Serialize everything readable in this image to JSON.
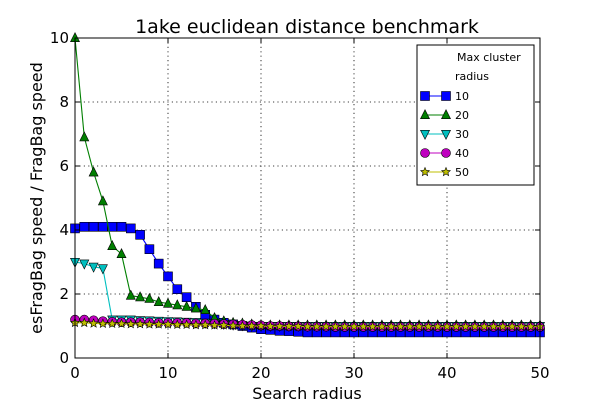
{
  "chart_data": {
    "type": "line",
    "title": "1ake euclidean distance benchmark",
    "xlabel": "Search radius",
    "ylabel": "esFragBag speed / FragBag speed",
    "xlim": [
      0,
      50
    ],
    "ylim": [
      0,
      10
    ],
    "xticks": [
      0,
      10,
      20,
      30,
      40,
      50
    ],
    "yticks": [
      0,
      2,
      4,
      6,
      8,
      10
    ],
    "grid": true,
    "legend_title": [
      "Max cluster",
      "radius"
    ],
    "legend_position": "upper right",
    "x": [
      0,
      1,
      2,
      3,
      4,
      5,
      6,
      7,
      8,
      9,
      10,
      11,
      12,
      13,
      14,
      15,
      16,
      17,
      18,
      19,
      20,
      21,
      22,
      23,
      24,
      25,
      26,
      27,
      28,
      29,
      30,
      31,
      32,
      33,
      34,
      35,
      36,
      37,
      38,
      39,
      40,
      41,
      42,
      43,
      44,
      45,
      46,
      47,
      48,
      49,
      50
    ],
    "series": [
      {
        "name": "10",
        "color": "#0000ff",
        "marker": "square",
        "values": [
          4.05,
          4.1,
          4.1,
          4.1,
          4.1,
          4.1,
          4.05,
          3.85,
          3.4,
          2.95,
          2.55,
          2.15,
          1.9,
          1.6,
          1.35,
          1.2,
          1.1,
          1.05,
          1.0,
          0.95,
          0.9,
          0.88,
          0.85,
          0.84,
          0.82,
          0.8,
          0.8,
          0.8,
          0.8,
          0.8,
          0.8,
          0.8,
          0.8,
          0.8,
          0.8,
          0.8,
          0.8,
          0.8,
          0.8,
          0.8,
          0.8,
          0.8,
          0.8,
          0.8,
          0.8,
          0.8,
          0.8,
          0.8,
          0.8,
          0.8,
          0.8
        ]
      },
      {
        "name": "20",
        "color": "#007f00",
        "marker": "triangle-up",
        "values": [
          10.0,
          6.9,
          5.8,
          4.9,
          3.5,
          3.25,
          1.95,
          1.9,
          1.85,
          1.75,
          1.7,
          1.65,
          1.6,
          1.55,
          1.5,
          1.25,
          1.15,
          1.1,
          1.08,
          1.05,
          1.03,
          1.02,
          1.02,
          1.02,
          1.02,
          1.02,
          1.02,
          1.02,
          1.02,
          1.02,
          1.02,
          1.02,
          1.02,
          1.02,
          1.02,
          1.02,
          1.02,
          1.02,
          1.02,
          1.02,
          1.02,
          1.02,
          1.02,
          1.02,
          1.02,
          1.02,
          1.02,
          1.02,
          1.02,
          1.02,
          1.02
        ]
      },
      {
        "name": "30",
        "color": "#00bfbf",
        "marker": "triangle-down",
        "values": [
          3.0,
          2.95,
          2.85,
          2.8,
          1.2,
          1.2,
          1.2,
          1.18,
          1.17,
          1.16,
          1.15,
          1.14,
          1.13,
          1.12,
          1.1,
          1.08,
          1.06,
          1.04,
          1.02,
          1.0,
          1.0,
          1.0,
          1.0,
          1.0,
          1.0,
          1.0,
          1.0,
          1.0,
          1.0,
          1.0,
          1.0,
          1.0,
          1.0,
          1.0,
          1.0,
          1.0,
          1.0,
          1.0,
          1.0,
          1.0,
          1.0,
          1.0,
          1.0,
          1.0,
          1.0,
          1.0,
          1.0,
          1.0,
          1.0,
          1.0,
          1.0
        ]
      },
      {
        "name": "40",
        "color": "#bf00bf",
        "marker": "circle",
        "values": [
          1.2,
          1.2,
          1.18,
          1.15,
          1.13,
          1.12,
          1.12,
          1.12,
          1.11,
          1.1,
          1.1,
          1.1,
          1.1,
          1.08,
          1.08,
          1.07,
          1.06,
          1.05,
          1.04,
          1.03,
          1.02,
          1.0,
          1.0,
          0.99,
          0.99,
          0.98,
          0.98,
          0.98,
          0.97,
          0.97,
          0.97,
          0.97,
          0.97,
          0.97,
          0.97,
          0.97,
          0.97,
          0.97,
          0.97,
          0.97,
          0.97,
          0.97,
          0.97,
          0.97,
          0.97,
          0.97,
          0.97,
          0.97,
          0.97,
          0.97,
          0.97
        ]
      },
      {
        "name": "50",
        "color": "#bfbf00",
        "marker": "star",
        "values": [
          1.1,
          1.1,
          1.08,
          1.07,
          1.07,
          1.07,
          1.06,
          1.06,
          1.05,
          1.05,
          1.05,
          1.04,
          1.04,
          1.03,
          1.03,
          1.02,
          1.02,
          1.01,
          1.0,
          1.0,
          1.0,
          0.99,
          0.99,
          0.99,
          0.99,
          0.98,
          0.98,
          0.98,
          0.98,
          0.98,
          0.98,
          0.98,
          0.98,
          0.98,
          0.98,
          0.98,
          0.98,
          0.98,
          0.98,
          0.98,
          0.98,
          0.98,
          0.98,
          0.98,
          0.98,
          0.98,
          0.98,
          0.98,
          0.98,
          0.98,
          0.98
        ]
      }
    ]
  }
}
